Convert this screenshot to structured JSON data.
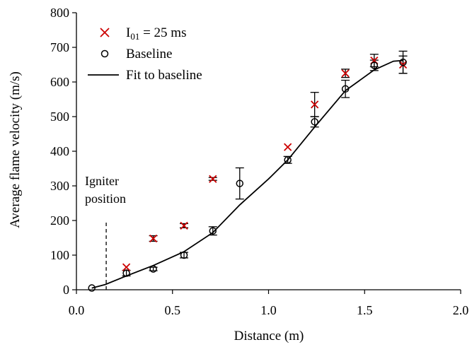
{
  "chart_data": {
    "type": "scatter",
    "xlabel": "Distance (m)",
    "ylabel": "Average flame velocity (m/s)",
    "xlim": [
      0.0,
      2.0
    ],
    "ylim": [
      0,
      800
    ],
    "x_ticks": [
      "0.0",
      "0.5",
      "1.0",
      "1.5",
      "2.0"
    ],
    "y_ticks": [
      "0",
      "100",
      "200",
      "300",
      "400",
      "500",
      "600",
      "700",
      "800"
    ],
    "grid": false,
    "legend_position": "top-left",
    "series": [
      {
        "name_prefix": "I",
        "name_subscript": "01",
        "name_suffix": " = 25 ms",
        "marker": "x",
        "color": "#cc0000",
        "points": [
          {
            "x": 0.26,
            "y": 65,
            "err": 0
          },
          {
            "x": 0.4,
            "y": 148,
            "err": 8
          },
          {
            "x": 0.56,
            "y": 185,
            "err": 6
          },
          {
            "x": 0.71,
            "y": 320,
            "err": 4
          },
          {
            "x": 1.1,
            "y": 412,
            "err": 0
          },
          {
            "x": 1.24,
            "y": 535,
            "err": 35
          },
          {
            "x": 1.4,
            "y": 625,
            "err": 12
          },
          {
            "x": 1.55,
            "y": 662,
            "err": 18
          },
          {
            "x": 1.7,
            "y": 650,
            "err": 25
          }
        ]
      },
      {
        "name": "Baseline",
        "marker": "circle",
        "color": "#000000",
        "points": [
          {
            "x": 0.08,
            "y": 5,
            "err": 0
          },
          {
            "x": 0.26,
            "y": 48,
            "err": 8
          },
          {
            "x": 0.4,
            "y": 60,
            "err": 5
          },
          {
            "x": 0.56,
            "y": 100,
            "err": 8
          },
          {
            "x": 0.71,
            "y": 170,
            "err": 12
          },
          {
            "x": 0.85,
            "y": 307,
            "err": 45
          },
          {
            "x": 1.1,
            "y": 375,
            "err": 10
          },
          {
            "x": 1.24,
            "y": 485,
            "err": 15
          },
          {
            "x": 1.4,
            "y": 580,
            "err": 25
          },
          {
            "x": 1.55,
            "y": 648,
            "err": 15
          },
          {
            "x": 1.7,
            "y": 657,
            "err": 32
          }
        ]
      },
      {
        "name": "Fit to baseline",
        "type": "line",
        "color": "#000000",
        "points": [
          {
            "x": 0.08,
            "y": 5
          },
          {
            "x": 0.15,
            "y": 15
          },
          {
            "x": 0.26,
            "y": 40
          },
          {
            "x": 0.4,
            "y": 70
          },
          {
            "x": 0.56,
            "y": 110
          },
          {
            "x": 0.71,
            "y": 165
          },
          {
            "x": 0.85,
            "y": 245
          },
          {
            "x": 1.0,
            "y": 320
          },
          {
            "x": 1.1,
            "y": 375
          },
          {
            "x": 1.24,
            "y": 470
          },
          {
            "x": 1.4,
            "y": 575
          },
          {
            "x": 1.55,
            "y": 635
          },
          {
            "x": 1.65,
            "y": 660
          },
          {
            "x": 1.7,
            "y": 662
          }
        ]
      }
    ],
    "annotations": [
      {
        "text_lines": [
          "Igniter",
          "position"
        ],
        "x": 0.155,
        "y_from": 0,
        "y_to": 195
      }
    ]
  }
}
